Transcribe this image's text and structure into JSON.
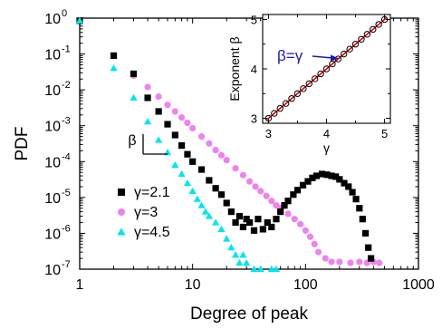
{
  "chart_data": [
    {
      "type": "scatter",
      "title": "",
      "xlabel": "Degree of peak",
      "ylabel": "PDF",
      "xscale": "log",
      "yscale": "log",
      "xlim": [
        1,
        1000
      ],
      "ylim": [
        1e-07,
        1
      ],
      "x_ticks": [
        "1",
        "10",
        "100",
        "1000"
      ],
      "y_ticks": [
        "10",
        "10",
        "10",
        "10",
        "10",
        "10",
        "10",
        "10"
      ],
      "y_tick_exponents": [
        "0",
        "-1",
        "-2",
        "-3",
        "-4",
        "-5",
        "-6",
        "-7"
      ],
      "legend_position": "lower-left",
      "annotation": "β",
      "series": [
        {
          "name": "γ=2.1",
          "marker": "square",
          "color": "#000000",
          "points": [
            [
              1,
              0.85
            ],
            [
              2,
              0.09
            ],
            [
              3,
              0.028
            ],
            [
              4,
              0.006
            ],
            [
              5,
              0.0025
            ],
            [
              6,
              0.0011
            ],
            [
              7,
              0.00055
            ],
            [
              8,
              0.00028
            ],
            [
              9,
              0.00016
            ],
            [
              10,
              0.0001
            ],
            [
              12,
              6e-05
            ],
            [
              14,
              3e-05
            ],
            [
              16,
              1.8e-05
            ],
            [
              18,
              1.2e-05
            ],
            [
              20,
              7e-06
            ],
            [
              22,
              4e-06
            ],
            [
              24,
              2e-06
            ],
            [
              26,
              3e-06
            ],
            [
              28,
              1.5e-06
            ],
            [
              30,
              2.5e-06
            ],
            [
              32,
              2e-06
            ],
            [
              35,
              1.2e-06
            ],
            [
              38,
              2.5e-06
            ],
            [
              42,
              1.3e-06
            ],
            [
              46,
              2e-06
            ],
            [
              50,
              1.5e-06
            ],
            [
              55,
              2.5e-06
            ],
            [
              60,
              4e-06
            ],
            [
              65,
              6e-06
            ],
            [
              70,
              8e-06
            ],
            [
              78,
              1.2e-05
            ],
            [
              85,
              1.6e-05
            ],
            [
              95,
              2.2e-05
            ],
            [
              105,
              2.8e-05
            ],
            [
              115,
              3.5e-05
            ],
            [
              125,
              4e-05
            ],
            [
              140,
              4.5e-05
            ],
            [
              155,
              4.3e-05
            ],
            [
              170,
              4e-05
            ],
            [
              185,
              3.8e-05
            ],
            [
              200,
              3.2e-05
            ],
            [
              220,
              2.5e-05
            ],
            [
              240,
              2e-05
            ],
            [
              260,
              1.4e-05
            ],
            [
              280,
              9e-06
            ],
            [
              300,
              5e-06
            ],
            [
              320,
              2.5e-06
            ],
            [
              340,
              1e-06
            ],
            [
              360,
              4e-07
            ],
            [
              380,
              2e-07
            ]
          ]
        },
        {
          "name": "γ=3",
          "marker": "circle",
          "color": "#ee82ee",
          "points": [
            [
              2,
              0.09
            ],
            [
              3,
              0.025
            ],
            [
              4,
              0.012
            ],
            [
              5,
              0.0065
            ],
            [
              6,
              0.0038
            ],
            [
              7,
              0.0025
            ],
            [
              8,
              0.0017
            ],
            [
              9,
              0.0012
            ],
            [
              10,
              0.00085
            ],
            [
              12,
              0.0005
            ],
            [
              14,
              0.00032
            ],
            [
              16,
              0.00021
            ],
            [
              18,
              0.00015
            ],
            [
              20,
              0.00011
            ],
            [
              24,
              6.5e-05
            ],
            [
              28,
              4.2e-05
            ],
            [
              32,
              2.8e-05
            ],
            [
              36,
              2e-05
            ],
            [
              40,
              1.5e-05
            ],
            [
              45,
              1.1e-05
            ],
            [
              50,
              8e-06
            ],
            [
              55,
              6e-06
            ],
            [
              60,
              5e-06
            ],
            [
              70,
              3.5e-06
            ],
            [
              80,
              2.5e-06
            ],
            [
              90,
              1.8e-06
            ],
            [
              100,
              1.2e-06
            ],
            [
              110,
              8e-07
            ],
            [
              120,
              5e-07
            ],
            [
              130,
              3e-07
            ],
            [
              150,
              2e-07
            ],
            [
              170,
              1.6e-07
            ],
            [
              200,
              1.6e-07
            ],
            [
              250,
              1.5e-07
            ],
            [
              300,
              1.6e-07
            ],
            [
              350,
              1.5e-07
            ],
            [
              400,
              1.6e-07
            ],
            [
              450,
              1.5e-07
            ]
          ]
        },
        {
          "name": "γ=4.5",
          "marker": "triangle",
          "color": "#00e5ee",
          "points": [
            [
              1,
              0.85
            ],
            [
              2,
              0.04
            ],
            [
              3,
              0.006
            ],
            [
              4,
              0.0013
            ],
            [
              5,
              0.0004
            ],
            [
              6,
              0.00018
            ],
            [
              7,
              8e-05
            ],
            [
              8,
              4.5e-05
            ],
            [
              9,
              2.5e-05
            ],
            [
              10,
              1.5e-05
            ],
            [
              11,
              9e-06
            ],
            [
              12,
              6e-06
            ],
            [
              13,
              4e-06
            ],
            [
              14,
              3e-06
            ],
            [
              16,
              2e-06
            ],
            [
              18,
              1.3e-06
            ],
            [
              20,
              7e-07
            ],
            [
              22,
              4e-07
            ],
            [
              24,
              2.5e-07
            ],
            [
              26,
              1.5e-07
            ],
            [
              28,
              2.5e-07
            ],
            [
              30,
              1.5e-07
            ],
            [
              35,
              1e-07
            ],
            [
              40,
              1e-07
            ],
            [
              50,
              1e-07
            ],
            [
              55,
              1e-07
            ]
          ]
        }
      ]
    },
    {
      "type": "scatter",
      "title": "",
      "xlabel": "γ",
      "ylabel": "Exponent β",
      "xlim": [
        2.9,
        5.1
      ],
      "ylim": [
        2.9,
        5.1
      ],
      "x_ticks": [
        "3",
        "4",
        "5"
      ],
      "y_ticks": [
        "3",
        "4",
        "5"
      ],
      "annotation": "β=γ",
      "line": {
        "type": "identity",
        "color": "#dd0000"
      },
      "marker": "open-circle",
      "x": [
        3.0,
        3.1,
        3.2,
        3.3,
        3.4,
        3.5,
        3.6,
        3.7,
        3.8,
        3.9,
        4.0,
        4.1,
        4.2,
        4.3,
        4.4,
        4.5,
        4.6,
        4.7,
        4.8,
        4.9,
        5.0
      ],
      "y": [
        3.0,
        3.1,
        3.2,
        3.3,
        3.4,
        3.5,
        3.6,
        3.7,
        3.8,
        3.9,
        4.0,
        4.1,
        4.2,
        4.3,
        4.4,
        4.5,
        4.6,
        4.7,
        4.8,
        4.9,
        5.0
      ]
    }
  ]
}
